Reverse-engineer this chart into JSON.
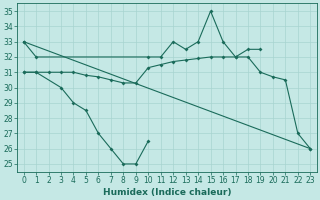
{
  "xlabel": "Humidex (Indice chaleur)",
  "xlim": [
    -0.5,
    23.5
  ],
  "ylim": [
    24.5,
    35.5
  ],
  "yticks": [
    25,
    26,
    27,
    28,
    29,
    30,
    31,
    32,
    33,
    34,
    35
  ],
  "xticks": [
    0,
    1,
    2,
    3,
    4,
    5,
    6,
    7,
    8,
    9,
    10,
    11,
    12,
    13,
    14,
    15,
    16,
    17,
    18,
    19,
    20,
    21,
    22,
    23
  ],
  "bg_color": "#c5e8e5",
  "line_color": "#1a6b5a",
  "grid_color": "#a8d4d0",
  "lines": [
    {
      "x": [
        0,
        1,
        10,
        11,
        12,
        13,
        14,
        15,
        16,
        17,
        18,
        19
      ],
      "y": [
        33,
        32,
        32,
        32,
        33,
        32.5,
        33,
        35,
        33,
        32,
        32.5,
        32.5
      ]
    },
    {
      "x": [
        0,
        1,
        3,
        4,
        5,
        6,
        7,
        8,
        9,
        10
      ],
      "y": [
        31,
        31,
        30,
        29,
        28.5,
        27,
        26,
        25,
        25,
        26.5
      ]
    },
    {
      "x": [
        0,
        1,
        2,
        3,
        4,
        5,
        6,
        7,
        8,
        9,
        10,
        11,
        12,
        13,
        14,
        15,
        16,
        17,
        18,
        19,
        20,
        21,
        22,
        23
      ],
      "y": [
        31,
        31,
        31,
        31,
        31,
        30.8,
        30.7,
        30.5,
        30.3,
        30.3,
        31.3,
        31.5,
        31.7,
        31.8,
        31.9,
        32,
        32,
        32,
        32,
        31,
        30.7,
        30.5,
        27,
        26
      ]
    },
    {
      "x": [
        0,
        23
      ],
      "y": [
        33,
        26
      ]
    }
  ]
}
